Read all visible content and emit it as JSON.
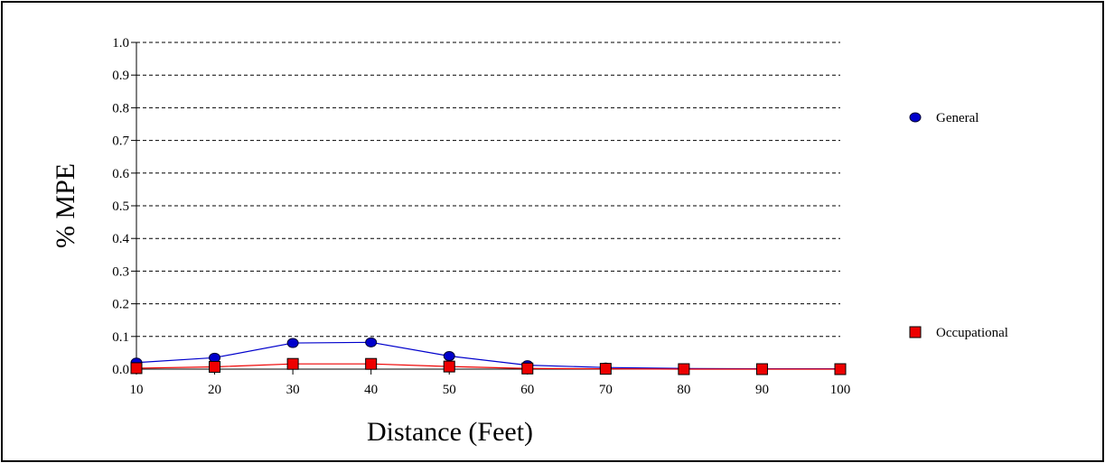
{
  "chart_data": {
    "type": "line",
    "xlabel": "Distance (Feet)",
    "ylabel": "% MPE",
    "x": [
      10,
      20,
      30,
      40,
      50,
      60,
      70,
      80,
      90,
      100
    ],
    "xticks": [
      "10",
      "20",
      "30",
      "40",
      "50",
      "60",
      "70",
      "80",
      "90",
      "100"
    ],
    "xlim": [
      10,
      100
    ],
    "yticks": [
      "0.0",
      "0.1",
      "0.2",
      "0.3",
      "0.4",
      "0.5",
      "0.6",
      "0.7",
      "0.8",
      "0.9",
      "1.0"
    ],
    "ylim": [
      0,
      1.0
    ],
    "grid": "horizontal-dashed",
    "legend_position": "right",
    "series": [
      {
        "name": "General",
        "color": "#0000cc",
        "marker": "circle",
        "values": [
          0.02,
          0.035,
          0.08,
          0.082,
          0.04,
          0.012,
          0.005,
          0.002,
          0.001,
          0.001
        ]
      },
      {
        "name": "Occupational",
        "color": "#ee0000",
        "marker": "square",
        "values": [
          0.003,
          0.007,
          0.016,
          0.016,
          0.008,
          0.002,
          0.001,
          0.0,
          0.0,
          0.0
        ]
      }
    ]
  }
}
